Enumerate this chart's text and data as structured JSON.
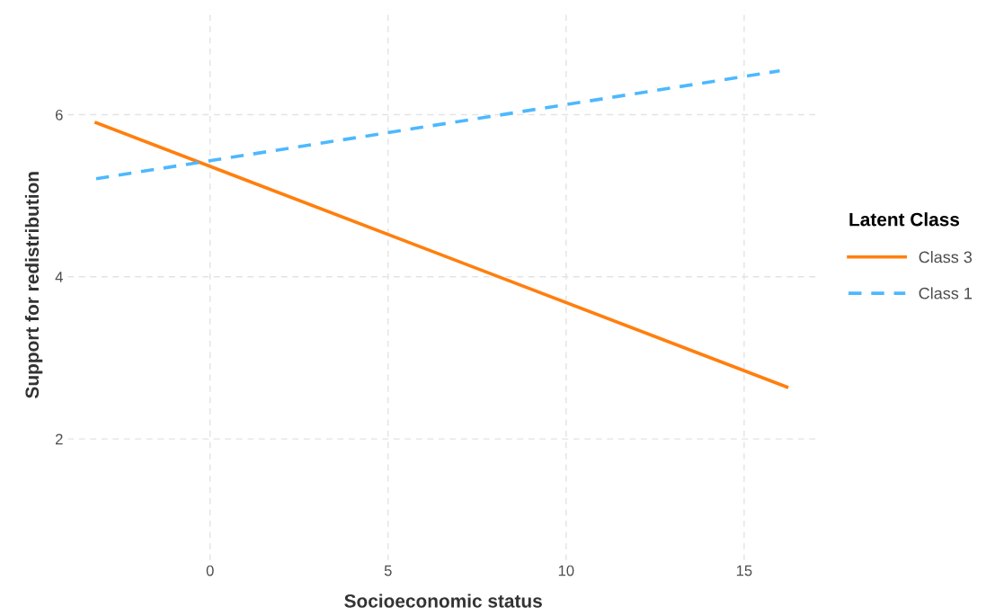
{
  "chart_data": {
    "type": "line",
    "xlabel": "Socioeconomic status",
    "ylabel": "Support for redistribution",
    "legend_title": "Latent Class",
    "series": [
      {
        "name": "Class 3",
        "color": "#ff7f0e",
        "line_style": "solid",
        "x": [
          -3.2,
          16.2
        ],
        "values": [
          5.9,
          2.64
        ]
      },
      {
        "name": "Class 1",
        "color": "#4db8ff",
        "line_style": "dashed",
        "x": [
          -3.2,
          16.0
        ],
        "values": [
          5.21,
          6.54
        ]
      }
    ],
    "xlim": [
      -4.0,
      17.1
    ],
    "ylim": [
      0.5,
      7.3
    ],
    "xticks": [
      0,
      5,
      10,
      15
    ],
    "yticks": [
      2,
      4,
      6
    ],
    "grid": true,
    "legend": "right",
    "marker": "none"
  }
}
